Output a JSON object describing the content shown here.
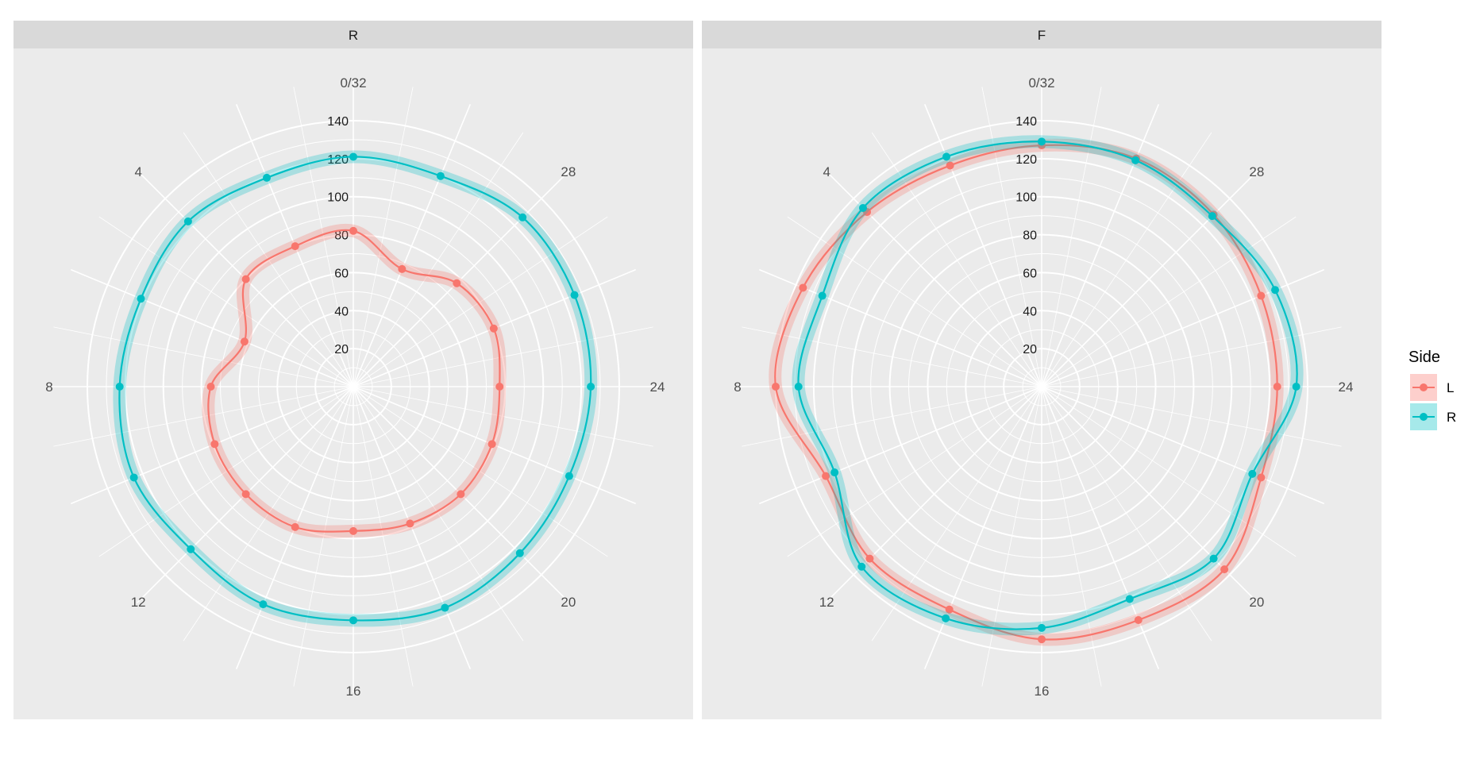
{
  "chart_data": {
    "type": "line",
    "coord": "polar",
    "theta_range": [
      0,
      32
    ],
    "r_range": [
      0,
      140
    ],
    "theta_tick_labels": [
      "0/32",
      "4",
      "8",
      "12",
      "16",
      "20",
      "24",
      "28"
    ],
    "theta_tick_values": [
      0,
      4,
      8,
      12,
      16,
      20,
      24,
      28
    ],
    "r_tick_labels": [
      "20",
      "40",
      "60",
      "80",
      "100",
      "120",
      "140"
    ],
    "r_tick_values": [
      20,
      40,
      60,
      80,
      100,
      120,
      140
    ],
    "x": [
      0,
      2,
      4,
      6,
      8,
      10,
      12,
      14,
      16,
      18,
      20,
      22,
      24,
      26,
      28,
      30
    ],
    "grid": true,
    "legend": {
      "title": "Side",
      "position": "right",
      "entries": [
        {
          "label": "L",
          "color": "#F8766D"
        },
        {
          "label": "R",
          "color": "#00BFC4"
        }
      ]
    },
    "panels": [
      {
        "strip": "R",
        "series": [
          {
            "name": "L",
            "color": "#F8766D",
            "values": [
              82,
              80,
              80,
              62,
              75,
              79,
              80,
              80,
              76,
              78,
              80,
              79,
              77,
              80,
              77,
              67
            ]
          },
          {
            "name": "R",
            "color": "#00BFC4",
            "values": [
              121,
              119,
              123,
              121,
              123,
              125,
              121,
              124,
              123,
              126,
              124,
              123,
              125,
              126,
              126,
              120
            ]
          }
        ]
      },
      {
        "strip": "F",
        "series": [
          {
            "name": "L",
            "color": "#F8766D",
            "values": [
              127,
              126,
              130,
              136,
              140,
              123,
              128,
              127,
              133,
              133,
              136,
              125,
              124,
              125,
              128,
              130
            ]
          },
          {
            "name": "R",
            "color": "#00BFC4",
            "values": [
              129,
              131,
              133,
              125,
              128,
              118,
              134,
              132,
              127,
              121,
              128,
              120,
              134,
              133,
              127,
              129
            ]
          }
        ]
      }
    ]
  }
}
